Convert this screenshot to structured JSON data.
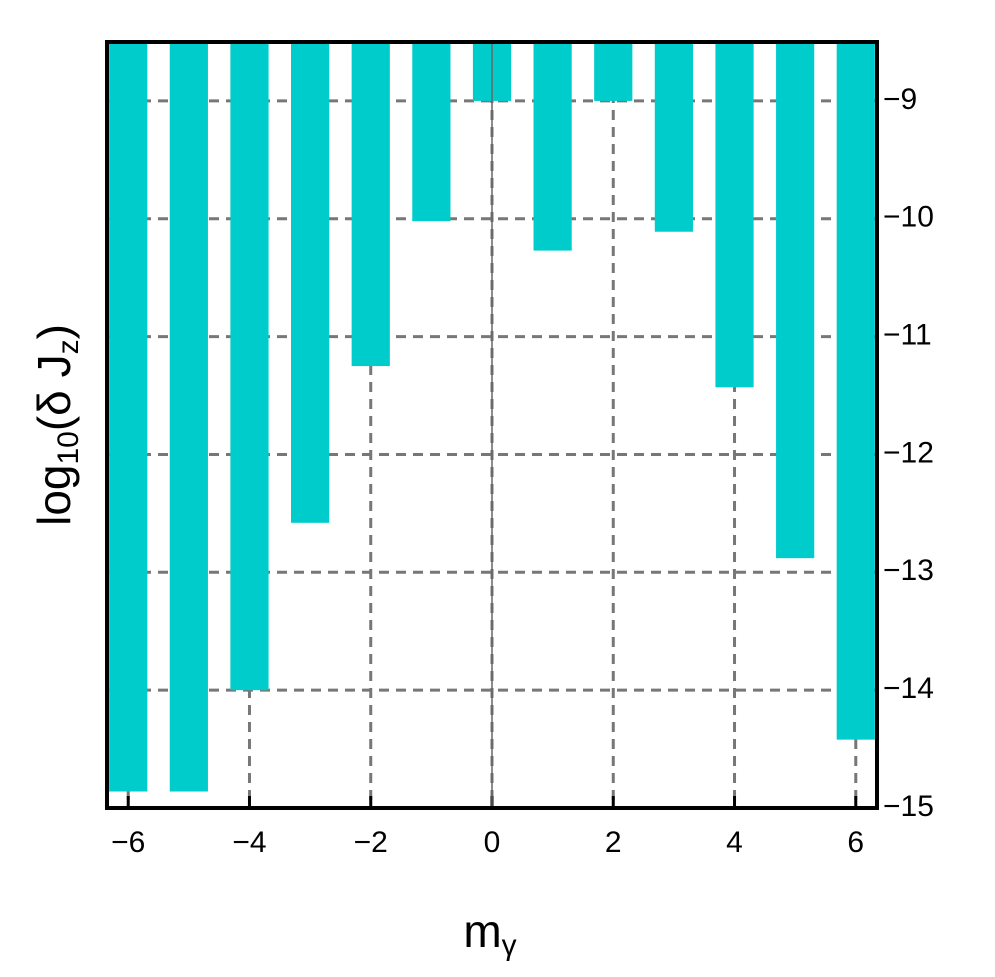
{
  "chart_data": {
    "type": "bar",
    "x_label_parts": [
      "m",
      "γ"
    ],
    "y_label_parts": [
      "log",
      "10",
      "(δ J",
      "z",
      ")"
    ],
    "x": [
      -6,
      -5,
      -4,
      -3,
      -2,
      -1,
      0,
      1,
      2,
      3,
      4,
      5,
      6
    ],
    "values": [
      -14.86,
      -14.86,
      -14.0,
      -12.58,
      -11.25,
      -10.02,
      -9.0,
      -10.27,
      -9.0,
      -10.11,
      -11.43,
      -12.88,
      -14.42
    ],
    "color": "#00cccc",
    "xlim": [
      -6.35,
      6.35
    ],
    "ylim": [
      -15,
      -8.5
    ],
    "xticks": [
      {
        "value": -6,
        "label": "−6"
      },
      {
        "value": -4,
        "label": "−4"
      },
      {
        "value": -2,
        "label": "−2"
      },
      0,
      2,
      4,
      6
    ],
    "yticks": [
      {
        "value": -9,
        "label": "−9"
      },
      {
        "value": -10,
        "label": "−10"
      },
      {
        "value": -11,
        "label": "−11"
      },
      {
        "value": -12,
        "label": "−12"
      },
      {
        "value": -13,
        "label": "−13"
      },
      {
        "value": -14,
        "label": "−14"
      },
      {
        "value": -15,
        "label": "−15"
      }
    ],
    "grid": true,
    "y_axis_side": "right"
  }
}
